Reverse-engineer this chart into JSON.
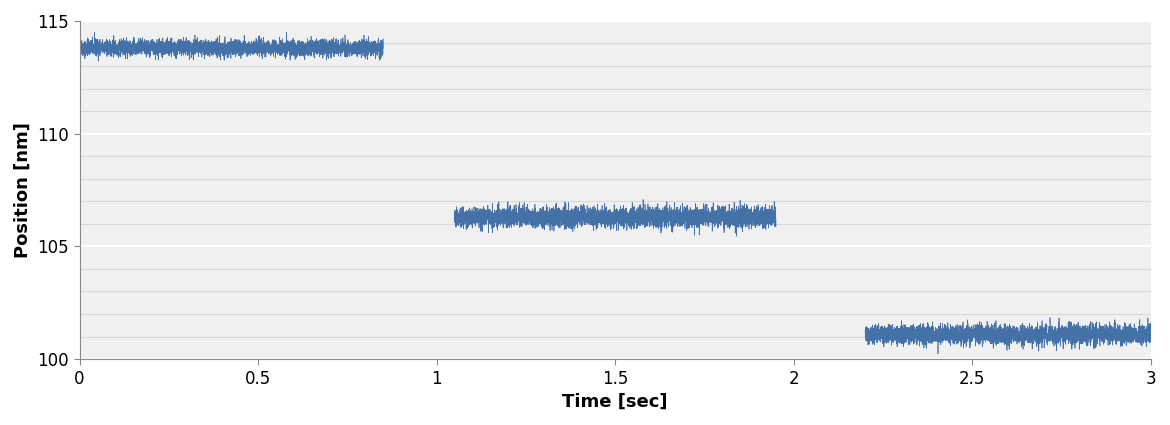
{
  "title": "",
  "xlabel": "Time [sec]",
  "ylabel": "Position [nm]",
  "xlim": [
    0,
    3
  ],
  "ylim": [
    100,
    115
  ],
  "xticks": [
    0,
    0.5,
    1,
    1.5,
    2,
    2.5,
    3
  ],
  "yticks": [
    100,
    105,
    110,
    115
  ],
  "minor_yticks": [
    101,
    102,
    103,
    104,
    106,
    107,
    108,
    109,
    111,
    112,
    113,
    114
  ],
  "line_color": "#4472a8",
  "background_color": "#ffffff",
  "plot_bg_color": "#f0f0f0",
  "grid_color": "#ffffff",
  "minor_grid_color": "#d8d8d8",
  "segments": [
    {
      "t_start": 0.0,
      "t_end": 0.85,
      "mean": 113.8,
      "noise": 0.18
    },
    {
      "t_start": 1.05,
      "t_end": 1.95,
      "mean": 106.3,
      "noise": 0.22
    },
    {
      "t_start": 2.2,
      "t_end": 3.0,
      "mean": 101.1,
      "noise": 0.22
    }
  ],
  "sample_rate": 5000,
  "linewidth": 0.5,
  "font_size": 12,
  "label_font_size": 13
}
